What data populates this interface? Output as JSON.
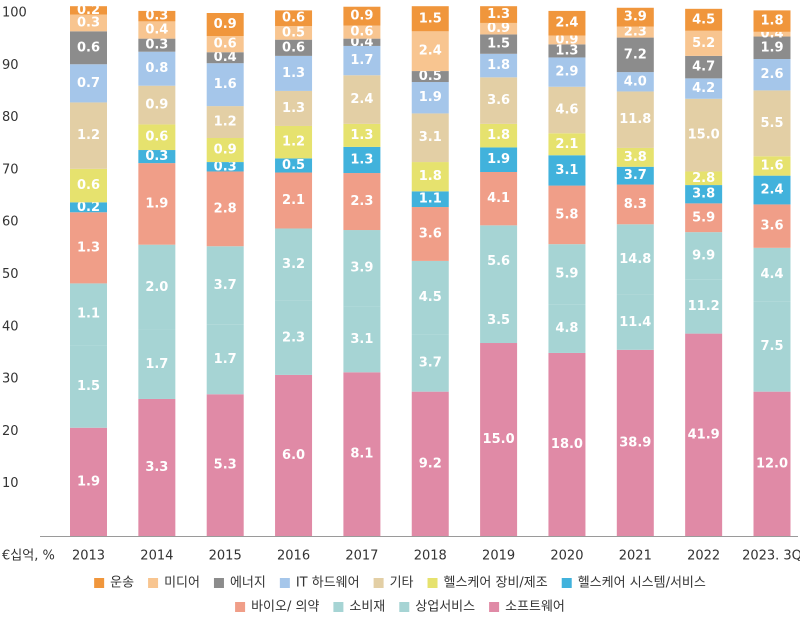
{
  "chart_data": {
    "type": "bar",
    "stacked": true,
    "unit_label": "€십억, %",
    "categories": [
      "2013",
      "2014",
      "2015",
      "2016",
      "2017",
      "2018",
      "2019",
      "2020",
      "2021",
      "2022",
      "2023. 3Q"
    ],
    "ylim": [
      0,
      100
    ],
    "y_ticks": [
      "10",
      "20",
      "30",
      "40",
      "50",
      "60",
      "70",
      "80",
      "90",
      "100"
    ],
    "grid": false,
    "legend_position": "bottom",
    "series": [
      {
        "name": "소프트웨어",
        "color": "#e08aa6",
        "label_color": "#ffffff",
        "labels": [
          "1.9",
          "3.3",
          "5.3",
          "6.0",
          "8.1",
          "9.2",
          "15.0",
          "18.0",
          "38.9",
          "41.9",
          "12.0"
        ],
        "shares": [
          20.7,
          26.2,
          27.1,
          30.8,
          31.3,
          27.6,
          36.9,
          35.0,
          35.6,
          38.7,
          27.6
        ]
      },
      {
        "name": "상업서비스",
        "color": "#a6d4d4",
        "label_color": "#ffffff",
        "labels": [
          "1.5",
          "1.7",
          "1.7",
          "2.3",
          "3.1",
          "3.7",
          "3.5",
          "4.8",
          "11.4",
          "11.2",
          "7.5"
        ],
        "shares": [
          15.8,
          13.2,
          13.3,
          14.2,
          12.6,
          11.0,
          8.7,
          9.3,
          10.5,
          10.3,
          17.3
        ]
      },
      {
        "name": "소비재",
        "color": "#a6d4d4",
        "label_color": "#ffffff",
        "labels": [
          "1.1",
          "2.0",
          "3.7",
          "3.2",
          "3.9",
          "4.5",
          "5.6",
          "5.9",
          "14.8",
          "9.9",
          "4.4"
        ],
        "shares": [
          11.8,
          16.3,
          15.0,
          13.8,
          14.6,
          14.0,
          13.8,
          11.5,
          13.5,
          9.1,
          10.2
        ]
      },
      {
        "name": "바이오/ 의약",
        "color": "#f09e88",
        "label_color": "#ffffff",
        "labels": [
          "1.3",
          "1.9",
          "2.8",
          "2.1",
          "2.3",
          "3.6",
          "4.1",
          "5.8",
          "8.3",
          "5.9",
          "3.6"
        ],
        "shares": [
          13.6,
          15.6,
          14.3,
          10.7,
          10.9,
          10.3,
          10.2,
          11.2,
          7.6,
          5.5,
          8.3
        ]
      },
      {
        "name": "헬스케어 시스템/서비스",
        "color": "#41b2dc",
        "label_color": "#ffffff",
        "labels": [
          "0.2",
          "0.3",
          "0.3",
          "0.5",
          "1.3",
          "1.1",
          "1.9",
          "3.1",
          "3.7",
          "3.8",
          "2.4"
        ],
        "shares": [
          1.9,
          2.5,
          1.8,
          2.7,
          5.0,
          3.0,
          4.7,
          5.8,
          3.4,
          3.5,
          5.5
        ]
      },
      {
        "name": "헬스케어 장비/제조",
        "color": "#e6e26e",
        "label_color": "#ffffff",
        "labels": [
          "0.6",
          "0.6",
          "0.9",
          "1.2",
          "1.3",
          "1.8",
          "1.8",
          "2.1",
          "3.8",
          "2.8",
          "1.6"
        ],
        "shares": [
          6.4,
          4.9,
          4.6,
          6.2,
          4.4,
          5.6,
          4.5,
          4.2,
          3.6,
          2.6,
          3.7
        ]
      },
      {
        "name": "기타",
        "color": "#e3cfa5",
        "label_color": "#ffffff",
        "labels": [
          "1.2",
          "0.9",
          "1.2",
          "1.3",
          "2.4",
          "3.1",
          "3.6",
          "4.6",
          "11.8",
          "15.0",
          "5.5"
        ],
        "shares": [
          12.7,
          7.4,
          6.1,
          6.7,
          9.3,
          9.3,
          8.9,
          8.9,
          10.8,
          13.9,
          12.6
        ]
      },
      {
        "name": "IT 하드웨어",
        "color": "#a5c6ea",
        "label_color": "#ffffff",
        "labels": [
          "0.7",
          "0.8",
          "1.6",
          "1.3",
          "1.7",
          "1.9",
          "1.8",
          "2.9",
          "4.0",
          "4.2",
          "2.6"
        ],
        "shares": [
          7.3,
          6.5,
          8.2,
          6.7,
          5.6,
          6.0,
          4.5,
          5.6,
          3.7,
          3.9,
          6.0
        ]
      },
      {
        "name": "에너지",
        "color": "#8c8c8c",
        "label_color": "#ffffff",
        "labels": [
          "0.6",
          "0.3",
          "0.4",
          "0.6",
          "0.4",
          "0.5",
          "1.5",
          "1.3",
          "7.2",
          "4.7",
          "1.9"
        ],
        "shares": [
          6.3,
          2.5,
          2.1,
          3.1,
          1.4,
          2.1,
          3.7,
          2.5,
          6.6,
          4.3,
          4.3
        ]
      },
      {
        "name": "미디어",
        "color": "#f8c590",
        "label_color": "#ffffff",
        "labels": [
          "0.3",
          "0.4",
          "0.6",
          "0.5",
          "0.6",
          "2.4",
          "0.9",
          "0.9",
          "2.3",
          "5.2",
          "0.4"
        ],
        "shares": [
          3.2,
          3.3,
          3.1,
          2.6,
          2.5,
          7.6,
          2.2,
          1.7,
          2.1,
          4.8,
          0.9
        ]
      },
      {
        "name": "운송",
        "color": "#f0963c",
        "label_color": "#ffffff",
        "labels": [
          "0.2",
          "0.3",
          "0.9",
          "0.6",
          "0.9",
          "1.5",
          "1.3",
          "2.4",
          "3.9",
          "4.5",
          "1.8"
        ],
        "shares": [
          1.6,
          2.0,
          4.4,
          3.0,
          3.6,
          4.8,
          3.2,
          4.7,
          3.6,
          4.2,
          4.1
        ]
      }
    ],
    "legend_rows": [
      [
        "운송",
        "미디어",
        "에너지",
        "IT 하드웨어",
        "기타",
        "헬스케어 장비/제조",
        "헬스케어 시스템/서비스"
      ],
      [
        "바이오/ 의약",
        "소비재",
        "상업서비스",
        "소프트웨어"
      ]
    ]
  }
}
